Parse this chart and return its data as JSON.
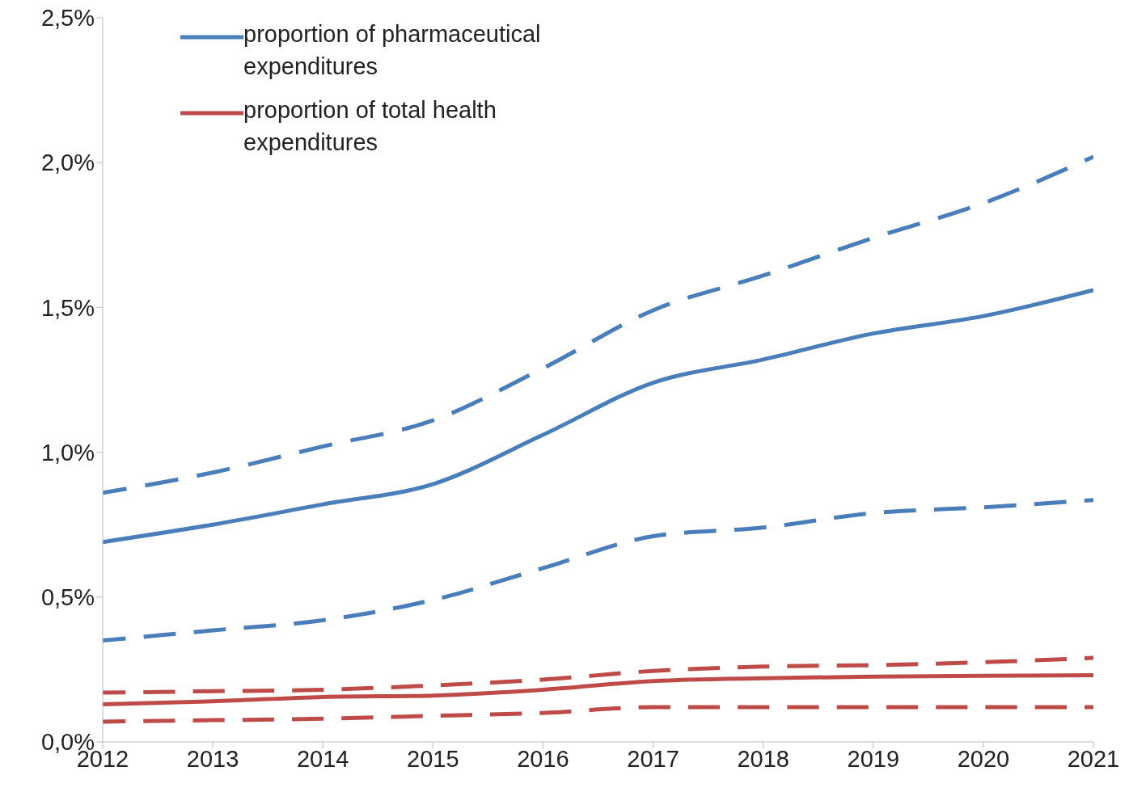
{
  "chart_data": {
    "type": "line",
    "x": [
      2012,
      2013,
      2014,
      2015,
      2016,
      2017,
      2018,
      2019,
      2020,
      2021
    ],
    "xlim": [
      2012,
      2021
    ],
    "xticks": [
      2012,
      2013,
      2014,
      2015,
      2016,
      2017,
      2018,
      2019,
      2020,
      2021
    ],
    "ylim": [
      0,
      2.5
    ],
    "yticks": [
      {
        "value": 0,
        "label": "0,0%"
      },
      {
        "value": 0.5,
        "label": "0,5%"
      },
      {
        "value": 1,
        "label": "1,0%"
      },
      {
        "value": 1.5,
        "label": "1,5%"
      },
      {
        "value": 2,
        "label": "2,0%"
      },
      {
        "value": 2.5,
        "label": "2,5%"
      }
    ],
    "grid": false,
    "legend": "top left",
    "marker": "none",
    "series": [
      {
        "name": "proportion of pharmaceutical expenditures",
        "color": "#4a7ebb",
        "line_style": "solid",
        "values": [
          0.69,
          0.75,
          0.82,
          0.89,
          1.06,
          1.24,
          1.32,
          1.41,
          1.47,
          1.56
        ]
      },
      {
        "color": "#4a7ebb",
        "line_style": "dashed",
        "values": [
          0.86,
          0.93,
          1.02,
          1.11,
          1.29,
          1.49,
          1.61,
          1.74,
          1.86,
          2.02
        ]
      },
      {
        "color": "#4a7ebb",
        "line_style": "dashed",
        "values": [
          0.35,
          0.385,
          0.42,
          0.49,
          0.6,
          0.71,
          0.74,
          0.79,
          0.81,
          0.835
        ]
      },
      {
        "name": "proportion of total health expenditures",
        "color": "#be4b48",
        "line_style": "solid",
        "values": [
          0.13,
          0.14,
          0.155,
          0.16,
          0.18,
          0.21,
          0.22,
          0.225,
          0.228,
          0.23
        ]
      },
      {
        "color": "#be4b48",
        "line_style": "dashed",
        "values": [
          0.17,
          0.175,
          0.18,
          0.195,
          0.215,
          0.245,
          0.26,
          0.265,
          0.275,
          0.29
        ]
      },
      {
        "color": "#be4b48",
        "line_style": "dashed",
        "values": [
          0.07,
          0.075,
          0.08,
          0.09,
          0.1,
          0.12,
          0.12,
          0.12,
          0.12,
          0.12
        ]
      }
    ]
  }
}
